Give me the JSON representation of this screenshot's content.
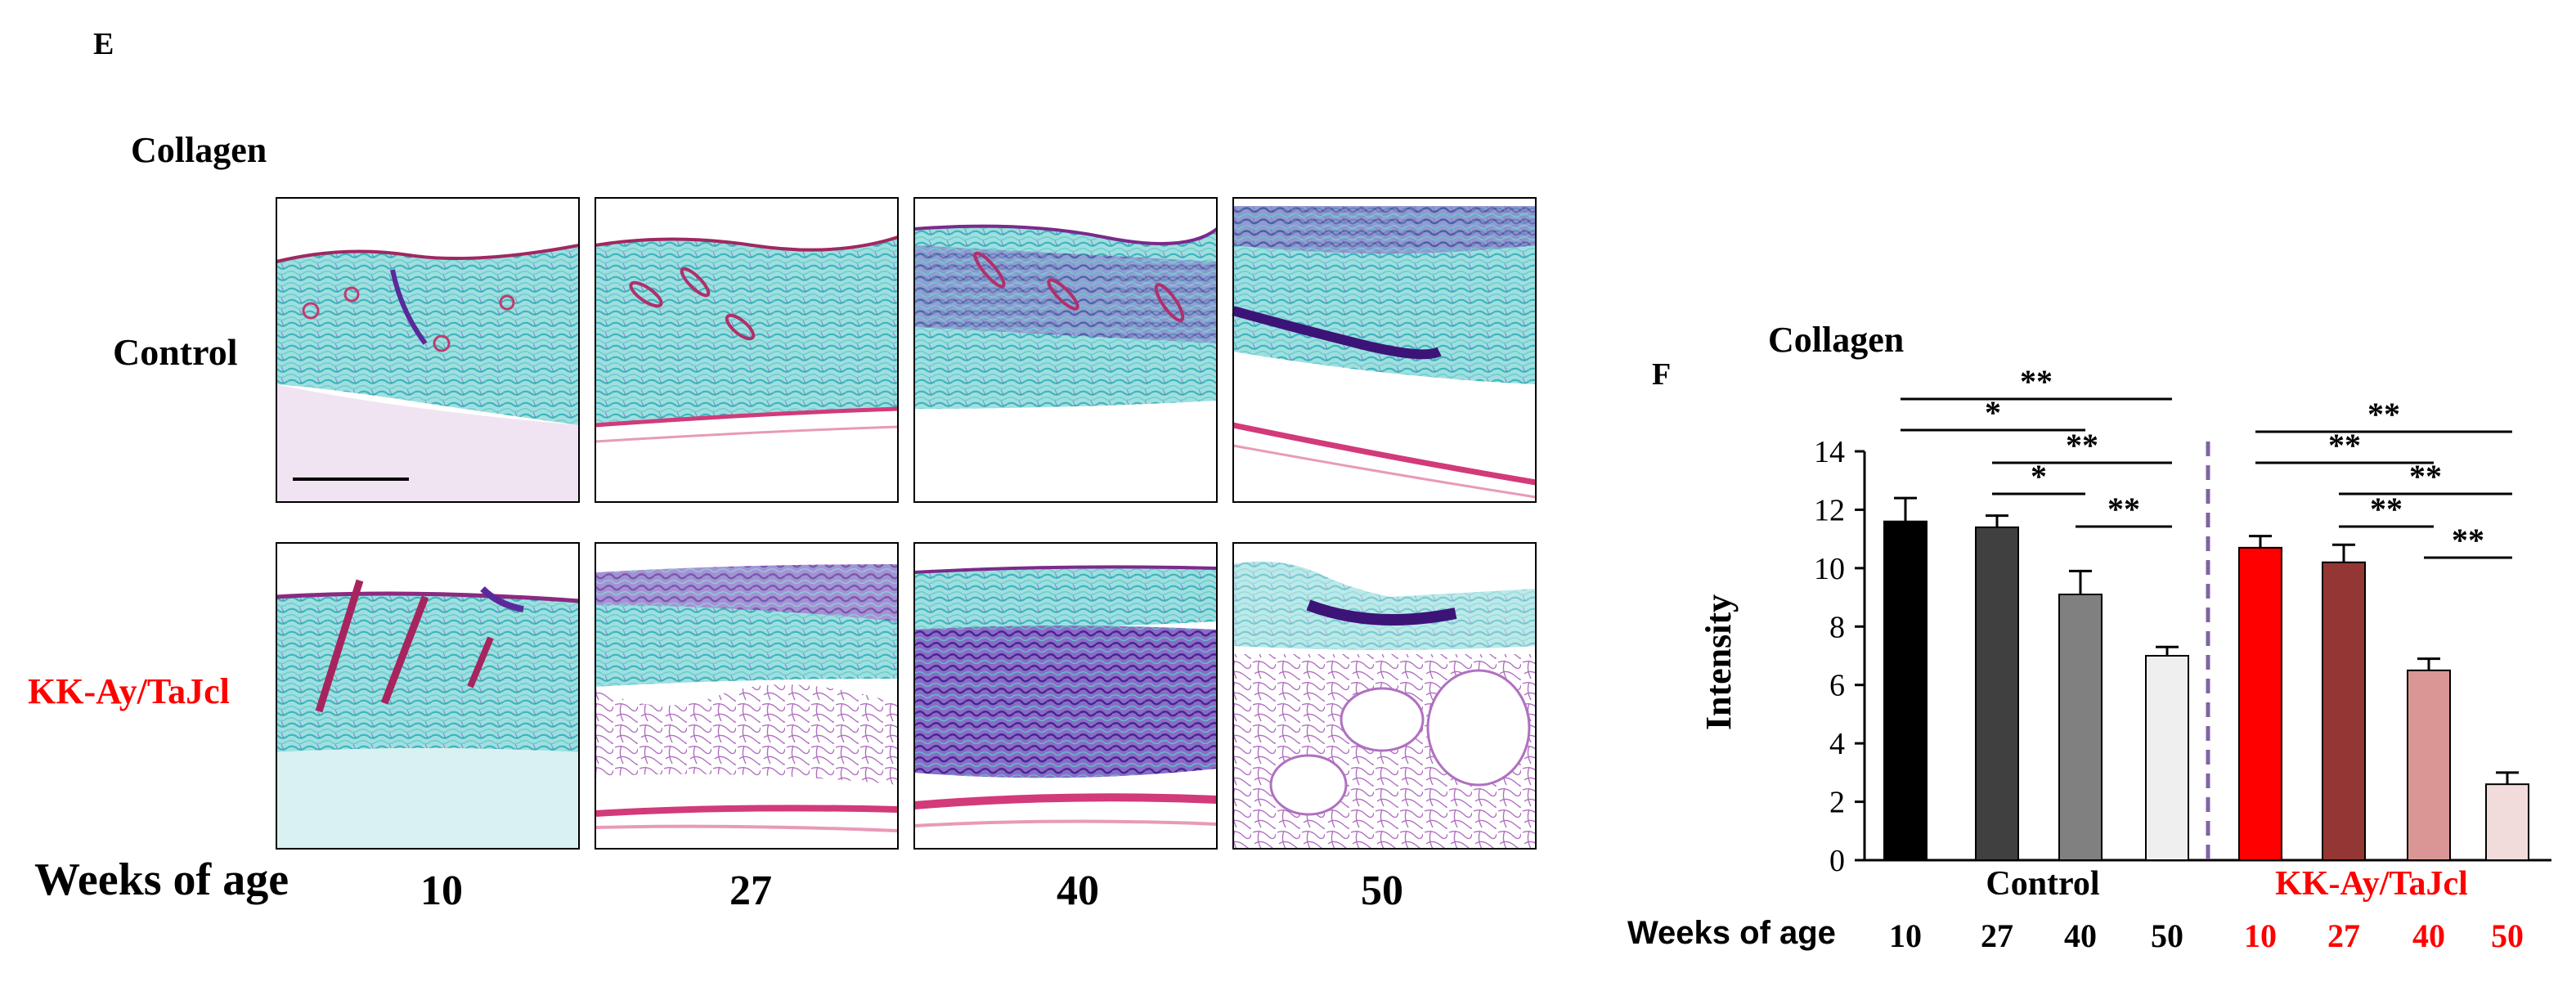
{
  "panel_e": {
    "letter": "E",
    "title": "Collagen",
    "row_labels": [
      "Control",
      "KK-Ay/TaJcl"
    ],
    "x_title": "Weeks of age",
    "columns": [
      "10",
      "27",
      "40",
      "50"
    ],
    "colors": {
      "control_label": "#000000",
      "kk_label": "#ff0000",
      "fiber": "#58c7c9",
      "dense": "#5a2a9a",
      "muscle": "#d23a7a"
    }
  },
  "panel_f": {
    "letter": "F",
    "title": "Collagen",
    "ylabel": "Intensity",
    "group_labels": [
      "Control",
      "KK-Ay/TaJcl"
    ],
    "weeks_label": "Weeks of age",
    "weeks": [
      "10",
      "27",
      "40",
      "50",
      "10",
      "27",
      "40",
      "50"
    ],
    "week_label_colors": [
      "#000000",
      "#000000",
      "#000000",
      "#000000",
      "#ff0000",
      "#ff0000",
      "#ff0000",
      "#ff0000"
    ],
    "significance": [
      {
        "label": "**",
        "from": 0,
        "to": 3
      },
      {
        "label": "*",
        "from": 0,
        "to": 2
      },
      {
        "label": "**",
        "from": 1,
        "to": 3
      },
      {
        "label": "*",
        "from": 1,
        "to": 2
      },
      {
        "label": "**",
        "from": 2,
        "to": 3
      },
      {
        "label": "**",
        "from": 4,
        "to": 7
      },
      {
        "label": "**",
        "from": 4,
        "to": 6
      },
      {
        "label": "**",
        "from": 5,
        "to": 7
      },
      {
        "label": "**",
        "from": 5,
        "to": 6
      },
      {
        "label": "**",
        "from": 6,
        "to": 7
      }
    ]
  },
  "chart_data": {
    "type": "bar",
    "title": "Collagen",
    "ylabel": "Intensity",
    "xlabel": "Weeks of age",
    "ylim": [
      0,
      14
    ],
    "yticks": [
      0,
      2,
      4,
      6,
      8,
      10,
      12,
      14
    ],
    "categories": [
      "10",
      "27",
      "40",
      "50",
      "10",
      "27",
      "40",
      "50"
    ],
    "groups": [
      "Control",
      "Control",
      "Control",
      "Control",
      "KK-Ay/TaJcl",
      "KK-Ay/TaJcl",
      "KK-Ay/TaJcl",
      "KK-Ay/TaJcl"
    ],
    "values": [
      11.6,
      11.4,
      9.1,
      7.0,
      10.7,
      10.2,
      6.5,
      2.6
    ],
    "errors": [
      0.8,
      0.4,
      0.8,
      0.3,
      0.4,
      0.6,
      0.4,
      0.4
    ],
    "bar_colors": [
      "#000000",
      "#404040",
      "#808080",
      "#efefef",
      "#ff0000",
      "#943634",
      "#d99694",
      "#f2dcdb"
    ],
    "grid": false,
    "divider_color": "#8064a2"
  }
}
